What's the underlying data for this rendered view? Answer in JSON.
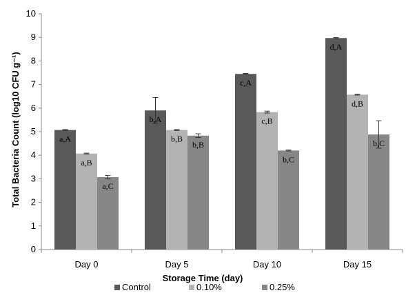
{
  "chart_data": {
    "type": "bar",
    "categories": [
      "Day 0",
      "Day 5",
      "Day 10",
      "Day 15"
    ],
    "xlabel": "Storage Time (day)",
    "ylabel": "Total Bacteria Count (log10 CFU g⁻¹)",
    "ylim": [
      0,
      10
    ],
    "yticks": [
      0,
      1,
      2,
      3,
      4,
      5,
      6,
      7,
      8,
      9,
      10
    ],
    "grid": false,
    "legend_position": "bottom",
    "series": [
      {
        "name": "Control",
        "color": "#595959",
        "values": [
          5.07,
          5.9,
          7.45,
          8.97
        ],
        "errors": [
          0.02,
          0.55,
          0.02,
          0.02
        ],
        "labels": [
          "a,A",
          "b,A",
          "c,A",
          "d,A"
        ]
      },
      {
        "name": "0.10%",
        "color": "#b3b3b3",
        "values": [
          4.07,
          5.07,
          5.83,
          6.57
        ],
        "errors": [
          0.02,
          0.02,
          0.04,
          0.02
        ],
        "labels": [
          "a,B",
          "b,B",
          "c,B",
          "d,B"
        ]
      },
      {
        "name": "0.25%",
        "color": "#878787",
        "values": [
          3.07,
          4.83,
          4.2,
          4.88
        ],
        "errors": [
          0.07,
          0.08,
          0.02,
          0.58
        ],
        "labels": [
          "a,C",
          "b,B",
          "b,C",
          "b,C"
        ]
      }
    ]
  }
}
